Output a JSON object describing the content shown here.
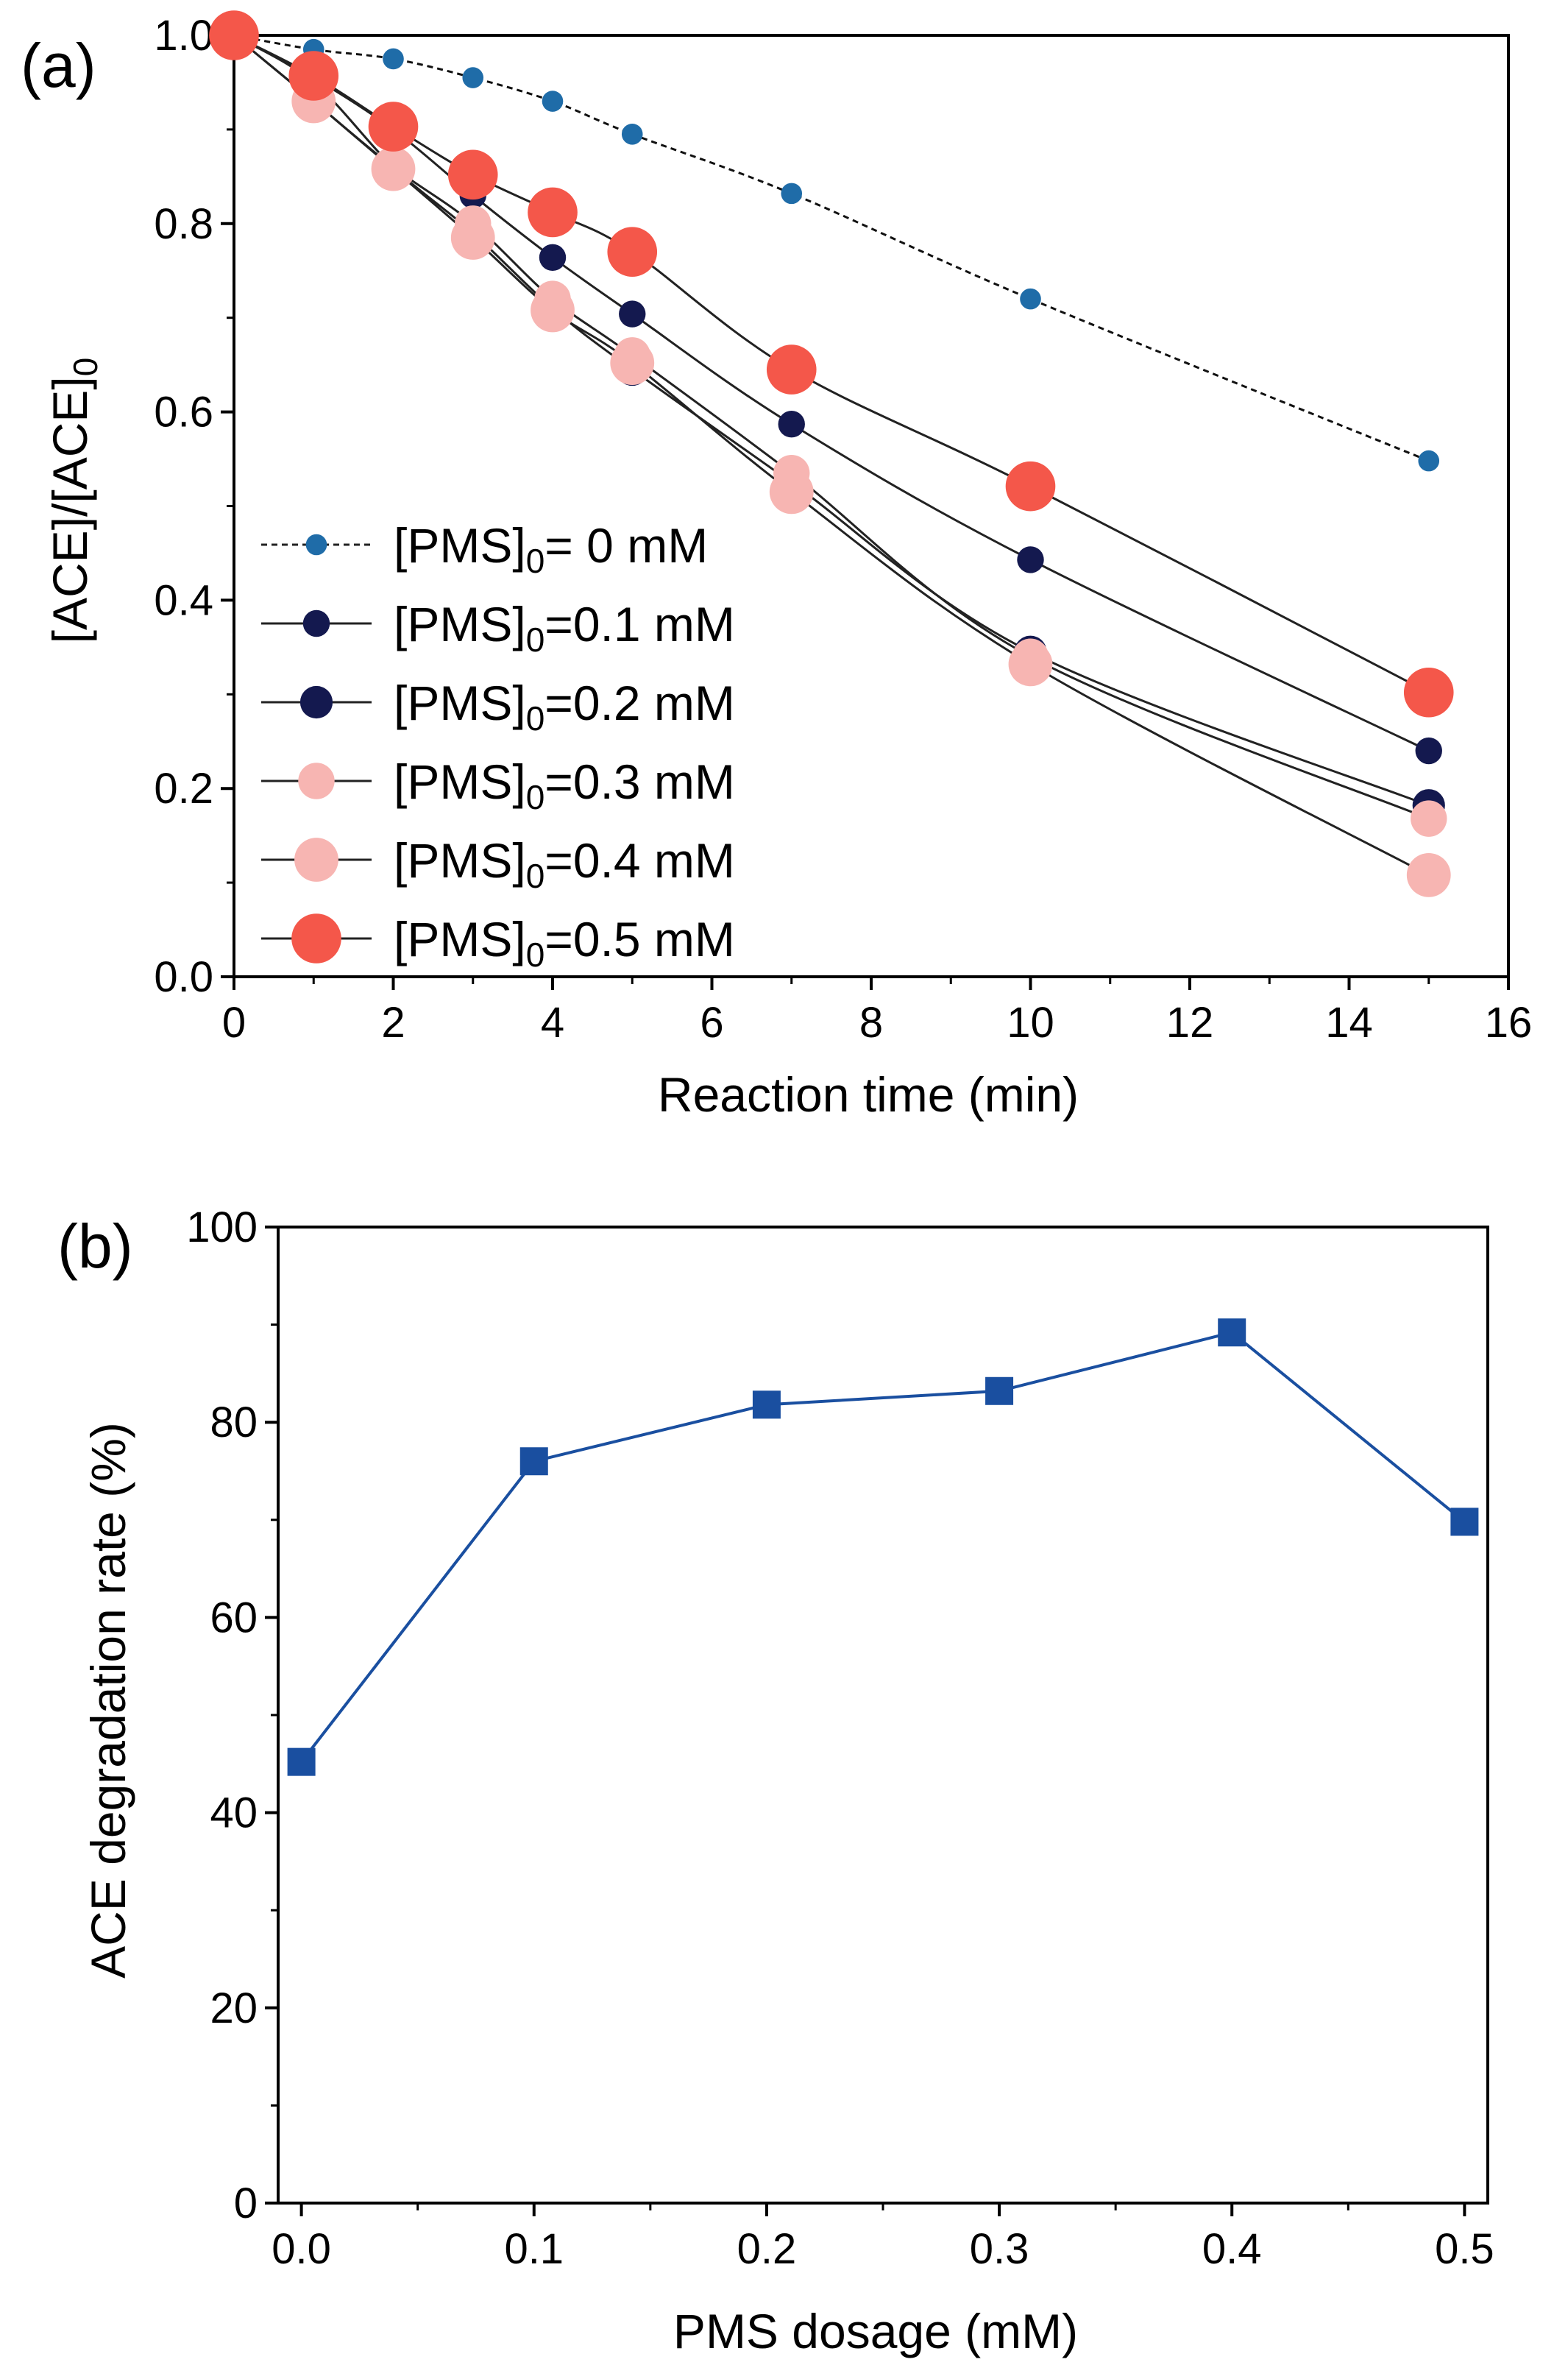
{
  "chart_data": [
    {
      "panel_label": "(a)",
      "type": "line",
      "xlabel": "Reaction time (min)",
      "ylabel": "[ACE]/[ACE]0",
      "xlim": [
        0,
        16
      ],
      "ylim": [
        0,
        1.0
      ],
      "xticks": [
        0,
        2,
        4,
        6,
        8,
        10,
        12,
        14,
        16
      ],
      "yticks": [
        0.0,
        0.2,
        0.4,
        0.6,
        0.8,
        1.0
      ],
      "xtick_labels": [
        "0",
        "2",
        "4",
        "6",
        "8",
        "10",
        "12",
        "14",
        "16"
      ],
      "ytick_labels": [
        "0.0",
        "0.2",
        "0.4",
        "0.6",
        "0.8",
        "1.0"
      ],
      "x": [
        0,
        1,
        2,
        3,
        4,
        5,
        7,
        10,
        15
      ],
      "legend_position": "bottom-left",
      "series": [
        {
          "name": "[PMS]0=  0 mM",
          "legend_main": "[PMS]",
          "legend_sub": "0",
          "legend_rest": "=  0 mM",
          "color": "#1f6ca8",
          "marker_scale": 0.55,
          "dashed": true,
          "values": [
            1.0,
            0.985,
            0.975,
            0.955,
            0.93,
            0.895,
            0.832,
            0.72,
            0.548
          ]
        },
        {
          "name": "[PMS]0=0.1 mM",
          "legend_main": "[PMS]",
          "legend_sub": "0",
          "legend_rest": "=0.1 mM",
          "color": "#14194f",
          "marker_scale": 0.7,
          "dashed": false,
          "values": [
            1.0,
            0.955,
            0.9,
            0.83,
            0.764,
            0.704,
            0.587,
            0.443,
            0.24
          ]
        },
        {
          "name": "[PMS]0=0.2 mM",
          "legend_main": "[PMS]",
          "legend_sub": "0",
          "legend_rest": "=0.2 mM",
          "color": "#14194f",
          "marker_scale": 0.85,
          "dashed": false,
          "values": [
            1.0,
            0.95,
            0.86,
            0.79,
            0.71,
            0.645,
            0.525,
            0.345,
            0.182
          ]
        },
        {
          "name": "[PMS]0=0.3 mM",
          "legend_main": "[PMS]",
          "legend_sub": "0",
          "legend_rest": "=0.3 mM",
          "color": "#f7b5b2",
          "marker_scale": 0.95,
          "dashed": false,
          "values": [
            1.0,
            0.93,
            0.86,
            0.8,
            0.72,
            0.66,
            0.535,
            0.34,
            0.168
          ]
        },
        {
          "name": "[PMS]0=0.4 mM",
          "legend_main": "[PMS]",
          "legend_sub": "0",
          "legend_rest": "=0.4 mM",
          "color": "#f7b5b2",
          "marker_scale": 1.15,
          "dashed": false,
          "values": [
            1.0,
            0.93,
            0.858,
            0.785,
            0.708,
            0.652,
            0.515,
            0.332,
            0.108
          ]
        },
        {
          "name": "[PMS]0=0.5 mM",
          "legend_main": "[PMS]",
          "legend_sub": "0",
          "legend_rest": "=0.5 mM",
          "color": "#f4574a",
          "marker_scale": 1.3,
          "dashed": false,
          "values": [
            1.0,
            0.957,
            0.903,
            0.852,
            0.812,
            0.77,
            0.645,
            0.521,
            0.302
          ]
        }
      ]
    },
    {
      "panel_label": "(b)",
      "type": "line",
      "xlabel": "PMS dosage (mM)",
      "ylabel": "ACE degradation rate (%)",
      "xlim": [
        -0.01,
        0.51
      ],
      "ylim": [
        0,
        100
      ],
      "xticks": [
        0.0,
        0.1,
        0.2,
        0.3,
        0.4,
        0.5
      ],
      "yticks": [
        0,
        20,
        40,
        60,
        80,
        100
      ],
      "xtick_labels": [
        "0.0",
        "0.1",
        "0.2",
        "0.3",
        "0.4",
        "0.5"
      ],
      "ytick_labels": [
        "0",
        "20",
        "40",
        "60",
        "80",
        "100"
      ],
      "series": [
        {
          "name": "ACE degradation rate",
          "color": "#1a4fa0",
          "marker": "square",
          "x": [
            0.0,
            0.1,
            0.2,
            0.3,
            0.4,
            0.5
          ],
          "values": [
            45.2,
            76.0,
            81.8,
            83.2,
            89.2,
            69.8
          ]
        }
      ]
    }
  ]
}
